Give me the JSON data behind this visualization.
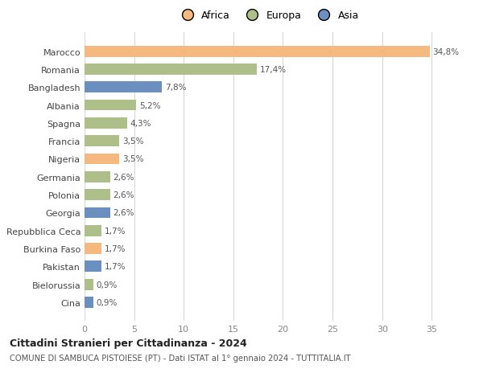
{
  "countries": [
    "Marocco",
    "Romania",
    "Bangladesh",
    "Albania",
    "Spagna",
    "Francia",
    "Nigeria",
    "Germania",
    "Polonia",
    "Georgia",
    "Repubblica Ceca",
    "Burkina Faso",
    "Pakistan",
    "Bielorussia",
    "Cina"
  ],
  "values": [
    34.8,
    17.4,
    7.8,
    5.2,
    4.3,
    3.5,
    3.5,
    2.6,
    2.6,
    2.6,
    1.7,
    1.7,
    1.7,
    0.9,
    0.9
  ],
  "labels": [
    "34,8%",
    "17,4%",
    "7,8%",
    "5,2%",
    "4,3%",
    "3,5%",
    "3,5%",
    "2,6%",
    "2,6%",
    "2,6%",
    "1,7%",
    "1,7%",
    "1,7%",
    "0,9%",
    "0,9%"
  ],
  "continents": [
    "Africa",
    "Europa",
    "Asia",
    "Europa",
    "Europa",
    "Europa",
    "Africa",
    "Europa",
    "Europa",
    "Asia",
    "Europa",
    "Africa",
    "Asia",
    "Europa",
    "Asia"
  ],
  "colors": {
    "Africa": "#F5B97F",
    "Europa": "#AEBF8A",
    "Asia": "#6B8FBF"
  },
  "title": "Cittadini Stranieri per Cittadinanza - 2024",
  "subtitle": "COMUNE DI SAMBUCA PISTOIESE (PT) - Dati ISTAT al 1° gennaio 2024 - TUTTITALIA.IT",
  "xlim": [
    0,
    37
  ],
  "xticks": [
    0,
    5,
    10,
    15,
    20,
    25,
    30,
    35
  ],
  "background_color": "#ffffff",
  "grid_color": "#d8d8d8"
}
